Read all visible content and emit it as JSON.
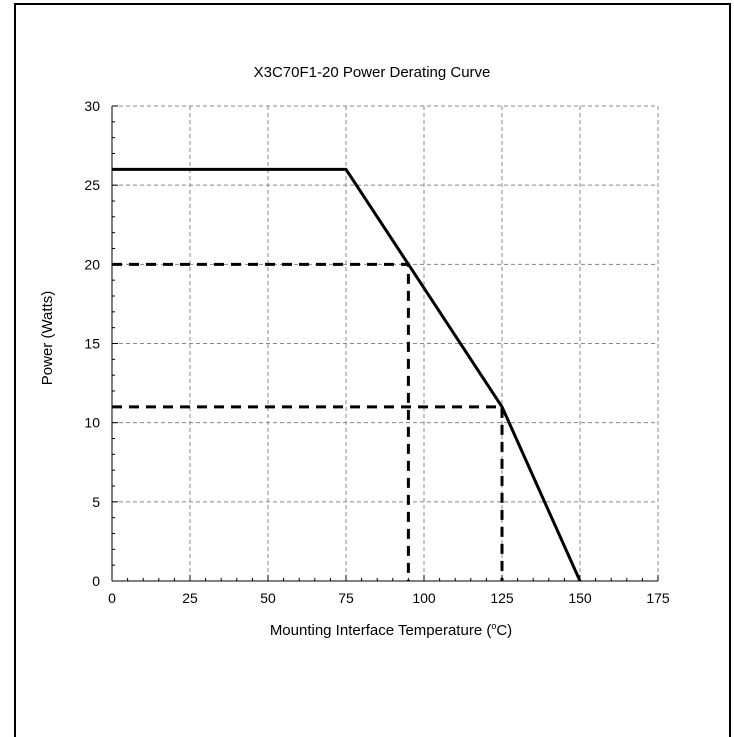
{
  "chart_data": {
    "type": "line",
    "title": "X3C70F1-20 Power Derating Curve",
    "xlabel_main": "Mounting Interface Temperature (",
    "xlabel_sup": "o",
    "xlabel_end": "C)",
    "ylabel": "Power (Watts)",
    "xlim": [
      0,
      175
    ],
    "ylim": [
      0,
      30
    ],
    "x_ticks": [
      0,
      25,
      50,
      75,
      100,
      125,
      150,
      175
    ],
    "y_ticks": [
      0,
      5,
      10,
      15,
      20,
      25,
      30
    ],
    "grid": true,
    "series": [
      {
        "style": "solid",
        "x": [
          0,
          75,
          95,
          125,
          150
        ],
        "y": [
          26,
          26,
          20,
          11,
          0
        ]
      }
    ],
    "reference_lines": [
      {
        "style": "dashed",
        "x": [
          0,
          95,
          95
        ],
        "y": [
          20,
          20,
          0
        ]
      },
      {
        "style": "dashed",
        "x": [
          0,
          125,
          125
        ],
        "y": [
          11,
          11,
          0
        ]
      }
    ]
  }
}
